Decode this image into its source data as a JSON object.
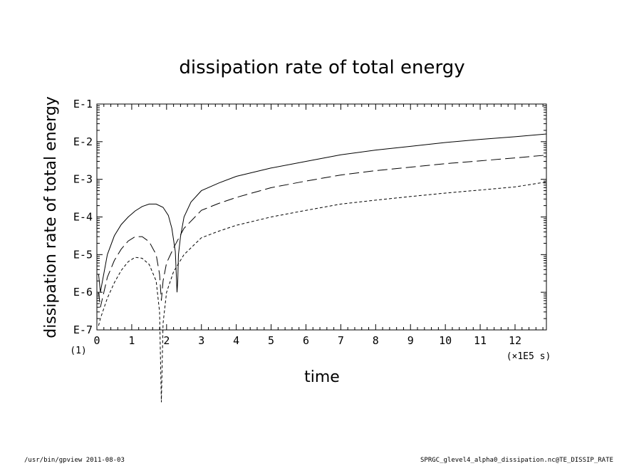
{
  "chart_data": {
    "type": "line",
    "title": "dissipation rate of total energy",
    "xlabel": "time",
    "ylabel": "dissipation rate of total energy",
    "x_unit": "(×1E5 s)",
    "y_scale_factor": "(1)",
    "yscale": "log",
    "xlim": [
      0,
      12.9
    ],
    "ylim": [
      1e-07,
      0.1
    ],
    "x_ticks": [
      "0",
      "1",
      "2",
      "3",
      "4",
      "5",
      "6",
      "7",
      "8",
      "9",
      "10",
      "11",
      "12"
    ],
    "y_ticks": [
      "E-7",
      "E-6",
      "E-5",
      "E-4",
      "E-3",
      "E-2",
      "E-1"
    ],
    "grid": false,
    "series": [
      {
        "style": "solid",
        "x": [
          0.05,
          0.1,
          0.3,
          0.5,
          0.7,
          0.9,
          1.1,
          1.3,
          1.5,
          1.7,
          1.9,
          2.05,
          2.15,
          2.25,
          2.3,
          2.32,
          2.34,
          2.4,
          2.5,
          2.7,
          3.0,
          3.5,
          4.0,
          5.0,
          6.0,
          7.0,
          8.0,
          9.0,
          10.0,
          11.0,
          12.0,
          12.9
        ],
        "y": [
          3e-06,
          1e-06,
          1e-05,
          3.16e-05,
          6.3e-05,
          0.0001,
          0.000145,
          0.00019,
          0.00022,
          0.00022,
          0.00018,
          0.00011,
          5e-05,
          1.2e-05,
          1e-06,
          2e-06,
          1e-05,
          3e-05,
          0.0001,
          0.00025,
          0.0005,
          0.0008,
          0.0012,
          0.002,
          0.003,
          0.0045,
          0.006,
          0.0075,
          0.0095,
          0.0115,
          0.0135,
          0.016
        ]
      },
      {
        "style": "long-dash",
        "x": [
          0.05,
          0.1,
          0.3,
          0.5,
          0.7,
          0.9,
          1.1,
          1.3,
          1.5,
          1.7,
          1.8,
          1.85,
          1.9,
          2.0,
          2.2,
          2.5,
          3.0,
          3.5,
          4.0,
          5.0,
          6.0,
          7.0,
          8.0,
          9.0,
          10.0,
          11.0,
          12.0,
          12.9
        ],
        "y": [
          1e-06,
          4e-07,
          2.5e-06,
          7e-06,
          1.4e-05,
          2.3e-05,
          3e-05,
          3e-05,
          2.2e-05,
          1e-05,
          3e-06,
          6e-07,
          2e-06,
          6e-06,
          1.5e-05,
          5e-05,
          0.00015,
          0.00023,
          0.00033,
          0.0006,
          0.0009,
          0.0013,
          0.0017,
          0.0021,
          0.0026,
          0.0031,
          0.0037,
          0.0044
        ]
      },
      {
        "style": "short-dash",
        "x": [
          0.05,
          0.1,
          0.3,
          0.5,
          0.7,
          0.9,
          1.1,
          1.3,
          1.5,
          1.7,
          1.8,
          1.85,
          1.9,
          2.0,
          2.2,
          2.5,
          3.0,
          3.5,
          4.0,
          5.0,
          6.0,
          7.0,
          8.0,
          9.0,
          10.0,
          11.0,
          12.0,
          12.9
        ],
        "y": [
          1.3e-07,
          2e-07,
          7e-07,
          1.8e-06,
          3.8e-06,
          6.5e-06,
          8.5e-06,
          8e-06,
          5.5e-06,
          2e-06,
          3e-07,
          1.2e-09,
          1.5e-07,
          1e-06,
          3.5e-06,
          1e-05,
          2.8e-05,
          4.2e-05,
          6e-05,
          0.0001,
          0.00015,
          0.00022,
          0.00028,
          0.00035,
          0.00043,
          0.00052,
          0.00063,
          0.00085
        ]
      }
    ]
  },
  "footer": {
    "left": "/usr/bin/gpview   2011-08-03",
    "right": "SPRGC_glevel4_alpha0_dissipation.nc@TE_DISSIP_RATE"
  }
}
